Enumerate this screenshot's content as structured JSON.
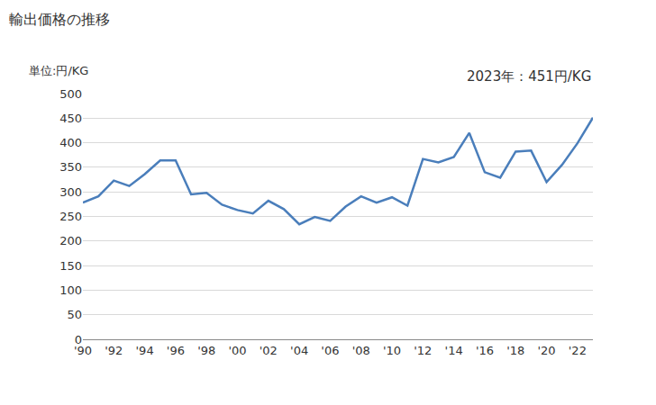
{
  "chart_data": {
    "type": "line",
    "title": "輸出価格の推移",
    "y_label": "単位:円/KG",
    "annotation": "2023年：451円/KG",
    "x": [
      1990,
      1991,
      1992,
      1993,
      1994,
      1995,
      1996,
      1997,
      1998,
      1999,
      2000,
      2001,
      2002,
      2003,
      2004,
      2005,
      2006,
      2007,
      2008,
      2009,
      2010,
      2011,
      2012,
      2013,
      2014,
      2015,
      2016,
      2017,
      2018,
      2019,
      2020,
      2021,
      2022,
      2023
    ],
    "values": [
      278,
      291,
      323,
      312,
      336,
      364,
      364,
      295,
      298,
      274,
      263,
      256,
      282,
      265,
      234,
      249,
      241,
      270,
      291,
      278,
      289,
      272,
      367,
      360,
      371,
      420,
      340,
      329,
      382,
      384,
      320,
      355,
      399,
      451
    ],
    "color": "#4a7ebb",
    "xlim": [
      1990,
      2023
    ],
    "ylim": [
      0,
      500
    ],
    "xticks": [
      {
        "value": 1990,
        "label": "'90"
      },
      {
        "value": 1992,
        "label": "'92"
      },
      {
        "value": 1994,
        "label": "'94"
      },
      {
        "value": 1996,
        "label": "'96"
      },
      {
        "value": 1998,
        "label": "'98"
      },
      {
        "value": 2000,
        "label": "'00"
      },
      {
        "value": 2002,
        "label": "'02"
      },
      {
        "value": 2004,
        "label": "'04"
      },
      {
        "value": 2006,
        "label": "'06"
      },
      {
        "value": 2008,
        "label": "'08"
      },
      {
        "value": 2010,
        "label": "'10"
      },
      {
        "value": 2012,
        "label": "'12"
      },
      {
        "value": 2014,
        "label": "'14"
      },
      {
        "value": 2016,
        "label": "'16"
      },
      {
        "value": 2018,
        "label": "'18"
      },
      {
        "value": 2020,
        "label": "'20"
      },
      {
        "value": 2022,
        "label": "'22"
      }
    ],
    "yticks": [
      0,
      50,
      100,
      150,
      200,
      250,
      300,
      350,
      400,
      450,
      500
    ],
    "grid": true
  }
}
